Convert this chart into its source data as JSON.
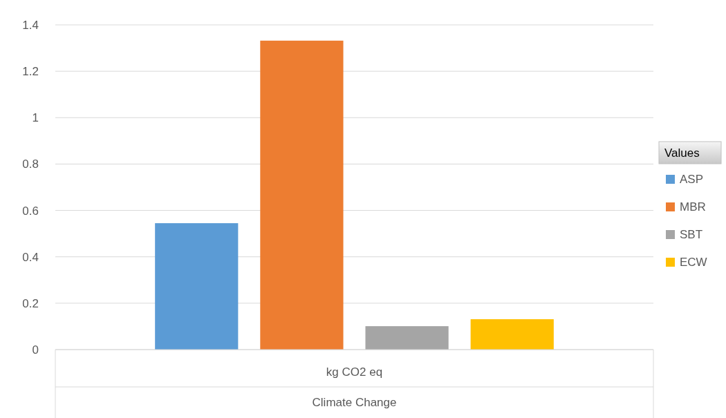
{
  "chart_data": {
    "type": "bar",
    "categories": [
      "kg CO2 eq"
    ],
    "xlabel": "Climate Change",
    "legend_title": "Values",
    "series": [
      {
        "name": "ASP",
        "color": "#5b9bd5",
        "values": [
          0.545
        ]
      },
      {
        "name": "MBR",
        "color": "#ed7d31",
        "values": [
          1.332
        ]
      },
      {
        "name": "SBT",
        "color": "#a5a5a5",
        "values": [
          0.101
        ]
      },
      {
        "name": "ECW",
        "color": "#ffc000",
        "values": [
          0.131
        ]
      }
    ],
    "ylim": [
      0,
      1.4
    ],
    "yticks": [
      0,
      0.2,
      0.4,
      0.6,
      0.8,
      1,
      1.2,
      1.4
    ],
    "grid": "y",
    "legend": "right"
  }
}
